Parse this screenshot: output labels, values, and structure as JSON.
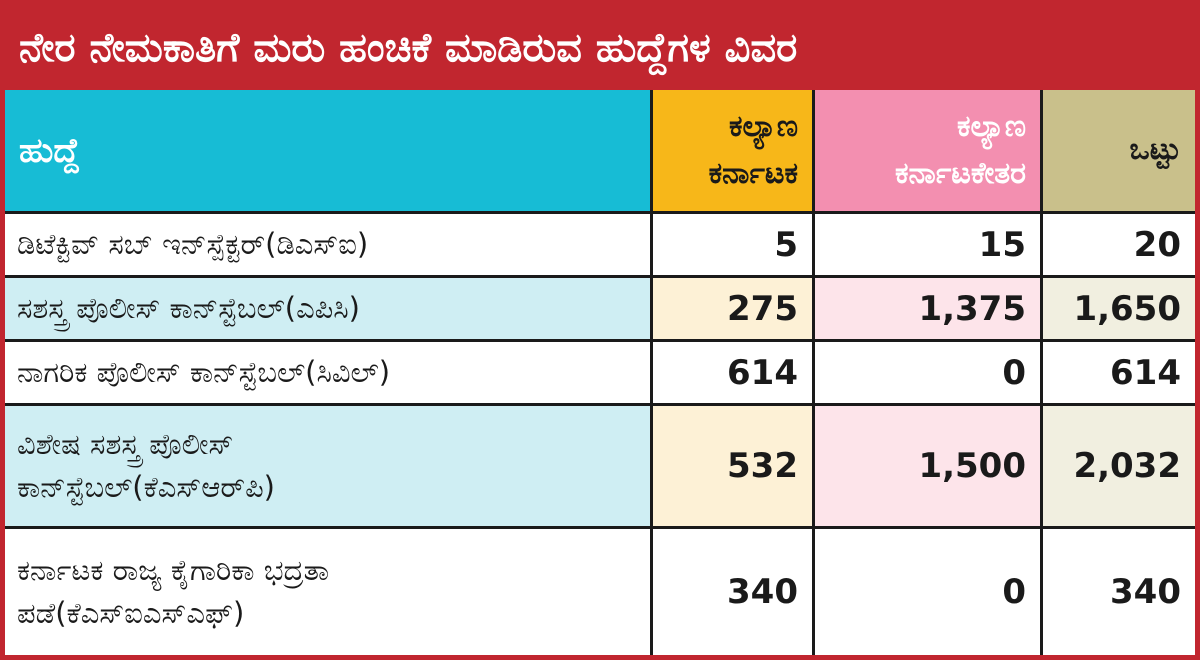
{
  "title": "ನೇರ ನೇಮಕಾತಿಗೆ ಮರು ಹಂಚಿಕೆ ಮಾಡಿರುವ ಹುದ್ದೆಗಳ ವಿವರ",
  "colors": {
    "title_bg": "#c1262f",
    "header_post": "#17bcd5",
    "header_kalyana_karnataka": "#f7b719",
    "header_kalyana_karnataketara": "#f38fb0",
    "header_total": "#c9c08b",
    "row_shade_post": "#cfeef3"
  },
  "chart_data": {
    "type": "table",
    "title": "ನೇರ ನೇಮಕಾತಿಗೆ ಮರು ಹಂಚಿಕೆ ಮಾಡಿರುವ ಹುದ್ದೆಗಳ ವಿವರ",
    "columns": [
      {
        "label": "ಹುದ್ದೆ"
      },
      {
        "label_line1": "ಕಲ್ಯಾಣ",
        "label_line2": "ಕರ್ನಾಟಕ"
      },
      {
        "label_line1": "ಕಲ್ಯಾಣ",
        "label_line2": "ಕರ್ನಾಟಕೇತರ"
      },
      {
        "label": "ಒಟ್ಟು"
      }
    ],
    "rows": [
      {
        "post": "ಡಿಟೆಕ್ಟಿವ್ ಸಬ್ ಇನ್‌ಸ್ಪೆಕ್ಟರ್(ಡಿಎಸ್‌ಐ)",
        "post_line2": "",
        "kalyana_karnataka": "5",
        "kalyana_karnataketara": "15",
        "total": "20"
      },
      {
        "post": "ಸಶಸ್ತ್ರ ಪೊಲೀಸ್ ಕಾನ್‌ಸ್ಟೆಬಲ್(ಎಪಿಸಿ)",
        "post_line2": "",
        "kalyana_karnataka": "275",
        "kalyana_karnataketara": "1,375",
        "total": "1,650"
      },
      {
        "post": "ನಾಗರಿಕ ಪೊಲೀಸ್ ಕಾನ್‌ಸ್ಟೆಬಲ್(ಸಿವಿಲ್)",
        "post_line2": "",
        "kalyana_karnataka": "614",
        "kalyana_karnataketara": "0",
        "total": "614"
      },
      {
        "post": "ವಿಶೇಷ ಸಶಸ್ತ್ರ ಪೊಲೀಸ್",
        "post_line2": "ಕಾನ್‌ಸ್ಟೆಬಲ್(ಕೆಎಸ್‌ಆರ್‌ಪಿ)",
        "kalyana_karnataka": "532",
        "kalyana_karnataketara": "1,500",
        "total": "2,032"
      },
      {
        "post": "ಕರ್ನಾಟಕ ರಾಜ್ಯ ಕೈಗಾರಿಕಾ ಭದ್ರತಾ",
        "post_line2": "ಪಡೆ(ಕೆಎಸ್‌ಐಎಸ್‌ಎಫ್)",
        "kalyana_karnataka": "340",
        "kalyana_karnataketara": "0",
        "total": "340"
      }
    ]
  }
}
